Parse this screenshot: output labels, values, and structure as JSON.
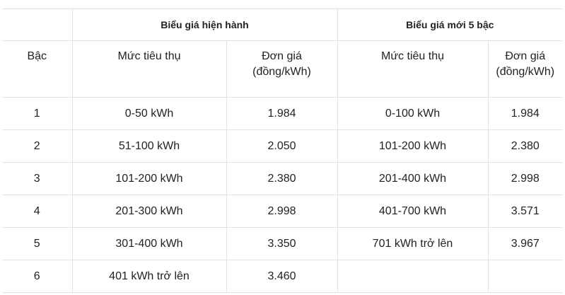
{
  "table": {
    "group_headers": [
      "Biểu giá hiện hành",
      "Biểu giá mới 5 bậc"
    ],
    "column_headers": [
      "Bậc",
      "Mức tiêu thụ",
      "Đơn giá (đồng/kWh)",
      "Mức tiêu thụ",
      "Đơn giá (đồng/kWh)"
    ],
    "rows": [
      [
        "1",
        "0-50 kWh",
        "1.984",
        "0-100 kWh",
        "1.984"
      ],
      [
        "2",
        "51-100 kWh",
        "2.050",
        "101-200 kWh",
        "2.380"
      ],
      [
        "3",
        "101-200 kWh",
        "2.380",
        "201-400 kWh",
        "2.998"
      ],
      [
        "4",
        "201-300 kWh",
        "2.998",
        "401-700 kWh",
        "3.571"
      ],
      [
        "5",
        "301-400 kWh",
        "3.350",
        "701 kWh trở lên",
        "3.967"
      ],
      [
        "6",
        "401 kWh trở lên",
        "3.460"
      ]
    ]
  }
}
